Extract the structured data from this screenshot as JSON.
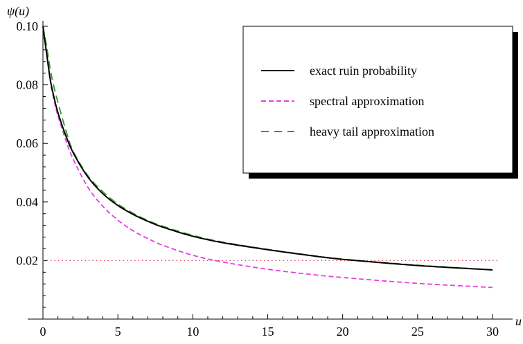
{
  "chart_data": {
    "type": "line",
    "ylabel": "ψ(u)",
    "xlabel": "u",
    "xlim": [
      0,
      30
    ],
    "ylim": [
      0.0,
      0.1
    ],
    "x_ticks": [
      "0",
      "5",
      "10",
      "15",
      "20",
      "25",
      "30"
    ],
    "y_ticks": [
      "0.02",
      "0.04",
      "0.06",
      "0.08",
      "0.10"
    ],
    "y_tick_values": [
      0.02,
      0.04,
      0.06,
      0.08,
      0.1
    ],
    "x_tick_values": [
      0,
      5,
      10,
      15,
      20,
      25,
      30
    ],
    "grid": false,
    "legend_position": "top-right",
    "reference_line": {
      "y": 0.02,
      "color": "#e0495a",
      "style": "dotted"
    },
    "series": [
      {
        "name": "exact ruin probability",
        "color": "#000000",
        "style": "solid",
        "x": [
          0,
          0.25,
          0.5,
          0.75,
          1,
          1.5,
          2,
          3,
          4,
          5,
          6,
          7,
          8,
          10,
          12,
          15,
          18,
          20,
          25,
          30
        ],
        "y": [
          0.1,
          0.0905,
          0.0815,
          0.0755,
          0.0705,
          0.063,
          0.057,
          0.0485,
          0.0428,
          0.0388,
          0.0358,
          0.0334,
          0.0314,
          0.0283,
          0.0261,
          0.0237,
          0.0216,
          0.0204,
          0.0183,
          0.0168
        ]
      },
      {
        "name": "spectral approximation",
        "color": "#e83de0",
        "style": "dashed",
        "x": [
          0,
          0.25,
          0.5,
          0.75,
          1,
          1.5,
          2,
          3,
          4,
          5,
          6,
          7,
          8,
          10,
          12,
          15,
          18,
          20,
          25,
          30
        ],
        "y": [
          0.1,
          0.0905,
          0.081,
          0.0745,
          0.0695,
          0.0615,
          0.0548,
          0.045,
          0.0385,
          0.0338,
          0.0302,
          0.0275,
          0.0252,
          0.0218,
          0.0195,
          0.017,
          0.0152,
          0.0142,
          0.0122,
          0.0108
        ]
      },
      {
        "name": "heavy tail approximation",
        "color": "#2f9e1f",
        "style": "dashed",
        "x": [
          0,
          0.25,
          0.5,
          0.75,
          1,
          1.5,
          2,
          3,
          4,
          5,
          6,
          7,
          8,
          10,
          12,
          15,
          18,
          20,
          25,
          30
        ],
        "y": [
          0.1,
          0.093,
          0.085,
          0.079,
          0.074,
          0.065,
          0.0575,
          0.049,
          0.0435,
          0.0393,
          0.0362,
          0.0337,
          0.0317,
          0.0286,
          0.0263,
          0.0238,
          0.0217,
          0.0205,
          0.0184,
          0.0168
        ]
      }
    ]
  }
}
